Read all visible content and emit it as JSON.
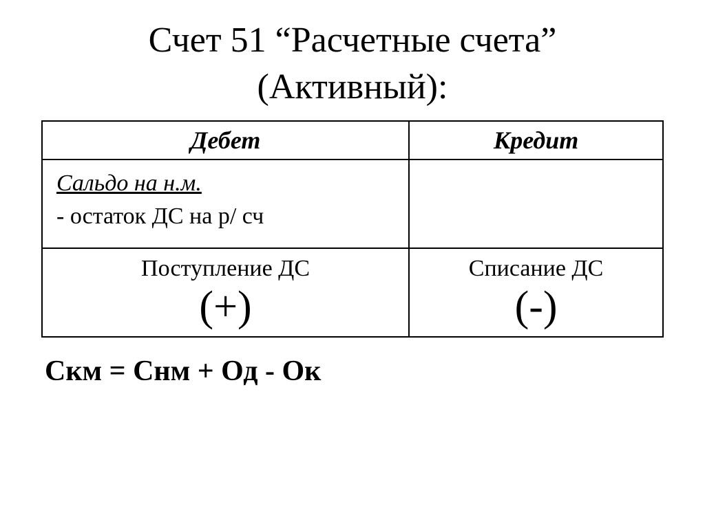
{
  "title": {
    "line1": "Счет 51 “Расчетные счета”",
    "line2": "(Активный):"
  },
  "table": {
    "headers": {
      "debit": "Дебет",
      "credit": "Кредит"
    },
    "saldo": {
      "label": "Сальдо на н.м.",
      "description": " - остаток ДС на р/ сч"
    },
    "movements": {
      "debit": {
        "label": "Поступление ДС",
        "sign": "(+)"
      },
      "credit": {
        "label": "Списание ДС",
        "sign": "(-)"
      }
    }
  },
  "formula": "Скм = Снм + Од - Ок",
  "styling": {
    "background_color": "#ffffff",
    "text_color": "#000000",
    "border_color": "#000000",
    "font_family": "Times New Roman",
    "title_fontsize": 52,
    "header_fontsize": 36,
    "cell_fontsize": 34,
    "sign_fontsize": 62,
    "formula_fontsize": 42,
    "border_width": 2
  }
}
